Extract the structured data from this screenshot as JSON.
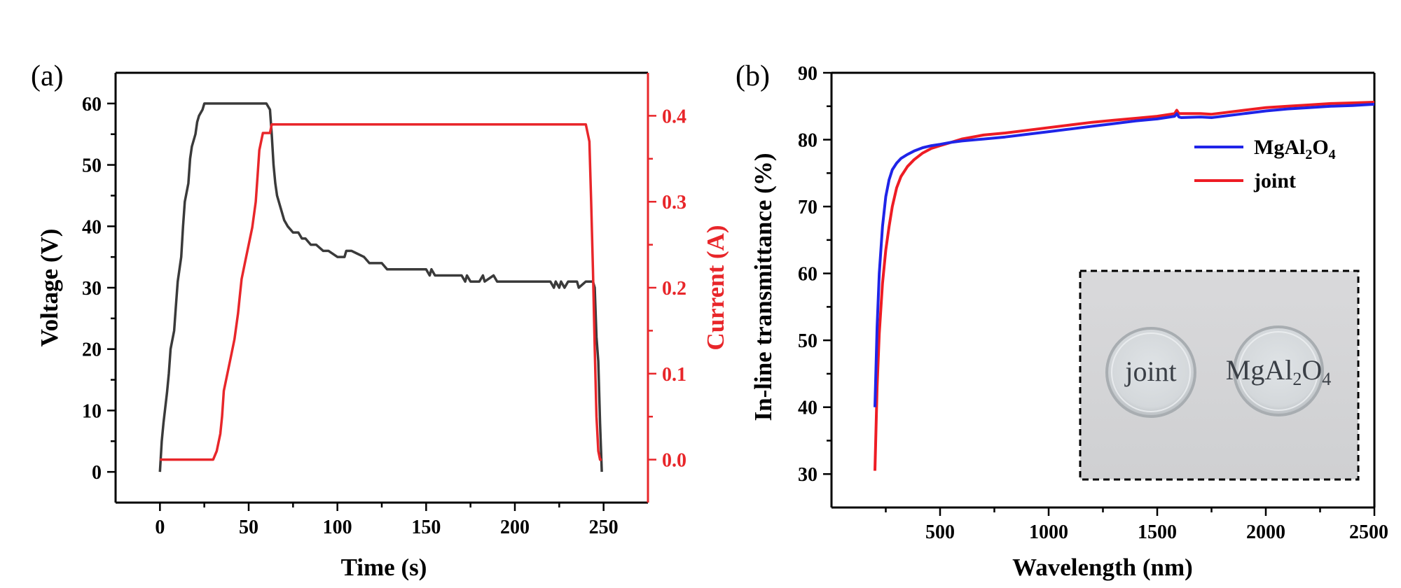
{
  "chart_data": [
    {
      "type": "line",
      "panel_label": "(a)",
      "xlabel": "Time (s)",
      "ylabel": "Voltage (V)",
      "y2label": "Current (A)",
      "xlim": [
        -25,
        275
      ],
      "ylim": [
        -5,
        65
      ],
      "y2lim": [
        -0.05,
        0.45
      ],
      "xticks": [
        0,
        50,
        100,
        150,
        200,
        250
      ],
      "yticks": [
        0,
        10,
        20,
        30,
        40,
        50,
        60
      ],
      "y2ticks": [
        "0.0",
        "0.1",
        "0.2",
        "0.3",
        "0.4"
      ],
      "axis_colors": {
        "left": "#000000",
        "right": "#e8262a"
      },
      "series": [
        {
          "axis": "left",
          "color": "#3a3a3a",
          "x": [
            0,
            1,
            2,
            4,
            5,
            6,
            8,
            9,
            10,
            12,
            13,
            14,
            16,
            17,
            18,
            20,
            21,
            22,
            24,
            25,
            26,
            27,
            28,
            29,
            30,
            45,
            60,
            62,
            63,
            64,
            65,
            66,
            68,
            70,
            72,
            75,
            78,
            80,
            82,
            85,
            88,
            92,
            95,
            100,
            104,
            105,
            108,
            115,
            118,
            120,
            125,
            128,
            150,
            152,
            153,
            155,
            170,
            172,
            173,
            175,
            180,
            182,
            183,
            188,
            190,
            220,
            222,
            223,
            225,
            226,
            228,
            230,
            235,
            236,
            240,
            243,
            244,
            245,
            246,
            247,
            248,
            249
          ],
          "values": [
            0,
            5,
            8,
            13,
            16,
            20,
            23,
            27,
            31,
            35,
            40,
            44,
            47,
            51,
            53,
            55,
            57,
            58,
            59,
            60,
            60,
            60,
            60,
            60,
            60,
            60,
            60,
            59,
            55,
            50,
            47,
            45,
            43,
            41,
            40,
            39,
            39,
            38,
            38,
            37,
            37,
            36,
            36,
            35,
            35,
            36,
            36,
            35,
            34,
            34,
            34,
            33,
            33,
            32,
            33,
            32,
            32,
            31,
            32,
            31,
            31,
            32,
            31,
            32,
            31,
            31,
            30,
            31,
            30,
            31,
            30,
            31,
            31,
            30,
            31,
            31,
            31,
            30,
            22,
            18,
            8,
            0
          ]
        },
        {
          "axis": "right",
          "color": "#e8262a",
          "x": [
            0,
            30,
            32,
            34,
            35,
            36,
            38,
            40,
            42,
            44,
            45,
            46,
            48,
            50,
            52,
            54,
            55,
            56,
            58,
            62,
            63,
            64,
            65,
            100,
            150,
            200,
            240,
            242,
            243,
            244,
            245,
            246,
            247,
            248,
            249
          ],
          "values": [
            0.0,
            0.0,
            0.01,
            0.03,
            0.05,
            0.08,
            0.1,
            0.12,
            0.14,
            0.17,
            0.19,
            0.21,
            0.23,
            0.25,
            0.27,
            0.3,
            0.33,
            0.36,
            0.38,
            0.38,
            0.39,
            0.39,
            0.39,
            0.39,
            0.39,
            0.39,
            0.39,
            0.37,
            0.3,
            0.22,
            0.13,
            0.05,
            0.01,
            0.0,
            0.0
          ]
        }
      ]
    },
    {
      "type": "line",
      "panel_label": "(b)",
      "xlabel": "Wavelength (nm)",
      "ylabel": "In-line transmittance (%)",
      "xlim": [
        0,
        2500
      ],
      "ylim": [
        25,
        90
      ],
      "xticks": [
        500,
        1000,
        1500,
        2000,
        2500
      ],
      "yticks": [
        30,
        40,
        50,
        60,
        70,
        80,
        90
      ],
      "legend_position": "top-right",
      "series": [
        {
          "name": "MgAl₂O₄",
          "name_base": "MgAl",
          "name_sub1": "2",
          "name_mid": "O",
          "name_sub2": "4",
          "color": "#1f24e8",
          "x": [
            200,
            210,
            220,
            235,
            250,
            265,
            280,
            300,
            320,
            350,
            380,
            420,
            460,
            500,
            550,
            600,
            700,
            800,
            900,
            1000,
            1100,
            1200,
            1300,
            1400,
            1500,
            1580,
            1590,
            1600,
            1610,
            1700,
            1750,
            1800,
            1900,
            2000,
            2100,
            2200,
            2300,
            2400,
            2500
          ],
          "values": [
            40,
            52,
            60,
            67,
            71.5,
            74,
            75.5,
            76.5,
            77.2,
            77.8,
            78.3,
            78.8,
            79.1,
            79.3,
            79.6,
            79.8,
            80.1,
            80.4,
            80.8,
            81.2,
            81.6,
            82.0,
            82.4,
            82.8,
            83.1,
            83.5,
            83.9,
            83.4,
            83.3,
            83.4,
            83.3,
            83.5,
            83.9,
            84.3,
            84.6,
            84.8,
            85.0,
            85.1,
            85.3
          ]
        },
        {
          "name": "joint",
          "color": "#ee1c24",
          "x": [
            200,
            210,
            220,
            235,
            250,
            265,
            280,
            300,
            320,
            350,
            380,
            420,
            460,
            500,
            550,
            600,
            700,
            800,
            900,
            1000,
            1100,
            1200,
            1300,
            1400,
            1500,
            1580,
            1590,
            1600,
            1610,
            1700,
            1750,
            1800,
            1900,
            2000,
            2100,
            2200,
            2300,
            2400,
            2500
          ],
          "values": [
            30.5,
            43,
            51,
            58.5,
            63.5,
            67,
            70,
            72.8,
            74.5,
            76,
            77,
            78,
            78.7,
            79.1,
            79.6,
            80.1,
            80.7,
            81.0,
            81.4,
            81.8,
            82.2,
            82.6,
            82.9,
            83.2,
            83.5,
            83.9,
            84.4,
            83.9,
            83.9,
            83.9,
            83.8,
            84.0,
            84.4,
            84.8,
            85.0,
            85.2,
            85.4,
            85.5,
            85.6
          ]
        }
      ],
      "inset": {
        "description_labels": [
          "joint",
          "MgAl₂O₄"
        ],
        "label_joint": "joint",
        "label_mgal_base": "MgAl",
        "label_mgal_sub1": "2",
        "label_mgal_mid": "O",
        "label_mgal_sub2": "4",
        "background_color": "#d2d3d5",
        "border": "dashed"
      }
    }
  ]
}
